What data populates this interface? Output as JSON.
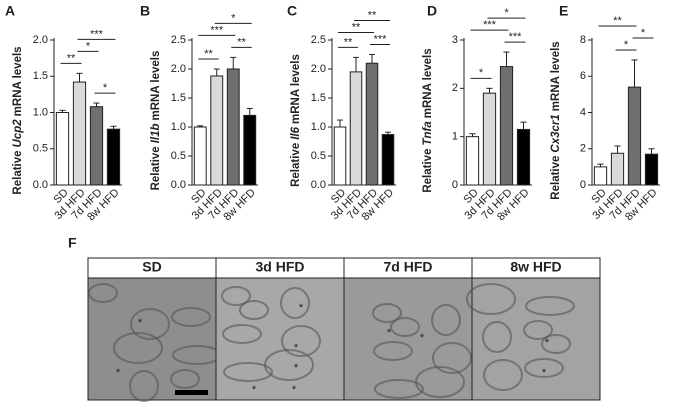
{
  "chart_data": [
    {
      "type": "bar",
      "panel": "A",
      "ylabel": {
        "prefix": "Relative",
        "gene": "Ucp2",
        "suffix": "mRNA levels"
      },
      "categories": [
        "SD",
        "3d HFD",
        "7d HFD",
        "8w HFD"
      ],
      "values": [
        1.0,
        1.42,
        1.08,
        0.77
      ],
      "errors": [
        0.03,
        0.12,
        0.05,
        0.04
      ],
      "colors": [
        "#ffffff",
        "#d9d9d9",
        "#707070",
        "#000000"
      ],
      "ylim": [
        0,
        2
      ],
      "yticks": [
        {
          "value": 0,
          "label": "0.0"
        },
        0.5,
        {
          "value": 1,
          "label": "1.0"
        },
        1.5,
        {
          "value": 2,
          "label": "2.0"
        }
      ],
      "comparisons": [
        {
          "pair": [
            0,
            1
          ],
          "label": "**"
        },
        {
          "pair": [
            1,
            2
          ],
          "label": "*"
        },
        {
          "pair": [
            2,
            3
          ],
          "label": "*"
        },
        {
          "pair": [
            1,
            3
          ],
          "label": "***"
        }
      ]
    },
    {
      "type": "bar",
      "panel": "B",
      "ylabel": {
        "prefix": "Relative",
        "gene": "Il1b",
        "suffix": "mRNA levels"
      },
      "categories": [
        "SD",
        "3d HFD",
        "7d HFD",
        "8w HFD"
      ],
      "values": [
        1.0,
        1.88,
        2.0,
        1.2
      ],
      "errors": [
        0.02,
        0.12,
        0.2,
        0.12
      ],
      "colors": [
        "#ffffff",
        "#d9d9d9",
        "#707070",
        "#000000"
      ],
      "ylim": [
        0,
        2.5
      ],
      "yticks": [
        {
          "value": 0,
          "label": "0.0"
        },
        0.5,
        {
          "value": 1,
          "label": "1.0"
        },
        1.5,
        {
          "value": 2,
          "label": "2.0"
        },
        2.5
      ],
      "comparisons": [
        {
          "pair": [
            0,
            1
          ],
          "label": "**"
        },
        {
          "pair": [
            2,
            3
          ],
          "label": "**"
        },
        {
          "pair": [
            0,
            2
          ],
          "label": "***"
        },
        {
          "pair": [
            1,
            3
          ],
          "label": "*"
        }
      ]
    },
    {
      "type": "bar",
      "panel": "C",
      "ylabel": {
        "prefix": "Relative",
        "gene": "Il6",
        "suffix": "mRNA levels"
      },
      "categories": [
        "SD",
        "3d HFD",
        "7d HFD",
        "8w HFD"
      ],
      "values": [
        1.0,
        1.95,
        2.1,
        0.87
      ],
      "errors": [
        0.12,
        0.25,
        0.15,
        0.04
      ],
      "colors": [
        "#ffffff",
        "#d9d9d9",
        "#707070",
        "#000000"
      ],
      "ylim": [
        0,
        2.5
      ],
      "yticks": [
        {
          "value": 0,
          "label": "0.0"
        },
        0.5,
        {
          "value": 1,
          "label": "1.0"
        },
        1.5,
        {
          "value": 2,
          "label": "2.0"
        },
        2.5
      ],
      "comparisons": [
        {
          "pair": [
            0,
            1
          ],
          "label": "**"
        },
        {
          "pair": [
            2,
            3
          ],
          "label": "***"
        },
        {
          "pair": [
            0,
            2
          ],
          "label": "**"
        },
        {
          "pair": [
            1,
            3
          ],
          "label": "**"
        }
      ]
    },
    {
      "type": "bar",
      "panel": "D",
      "ylabel": {
        "prefix": "Relative",
        "gene": "Tnfa",
        "suffix": "mRNA levels"
      },
      "categories": [
        "SD",
        "3d HFD",
        "7d HFD",
        "8w HFD"
      ],
      "values": [
        1.0,
        1.9,
        2.45,
        1.15
      ],
      "errors": [
        0.06,
        0.1,
        0.3,
        0.15
      ],
      "colors": [
        "#ffffff",
        "#d9d9d9",
        "#707070",
        "#000000"
      ],
      "ylim": [
        0,
        3
      ],
      "yticks": [
        0,
        1,
        2,
        3
      ],
      "comparisons": [
        {
          "pair": [
            0,
            1
          ],
          "label": "*"
        },
        {
          "pair": [
            2,
            3
          ],
          "label": "***"
        },
        {
          "pair": [
            0,
            2
          ],
          "label": "***"
        },
        {
          "pair": [
            1,
            3
          ],
          "label": "*"
        }
      ]
    },
    {
      "type": "bar",
      "panel": "E",
      "ylabel": {
        "prefix": "Relative",
        "gene": "Cx3cr1",
        "suffix": "mRNA levels"
      },
      "categories": [
        "SD",
        "3d HFD",
        "7d HFD",
        "8w HFD"
      ],
      "values": [
        1.0,
        1.75,
        5.4,
        1.7
      ],
      "errors": [
        0.15,
        0.4,
        1.5,
        0.3
      ],
      "colors": [
        "#ffffff",
        "#d9d9d9",
        "#707070",
        "#000000"
      ],
      "ylim": [
        0,
        8
      ],
      "yticks": [
        0,
        2,
        4,
        6,
        8
      ],
      "comparisons": [
        {
          "pair": [
            1,
            2
          ],
          "label": "*"
        },
        {
          "pair": [
            2,
            3
          ],
          "label": "*"
        },
        {
          "pair": [
            0,
            2
          ],
          "label": "**"
        }
      ]
    }
  ],
  "figure_f": {
    "panel": "F",
    "headers": [
      "SD",
      "3d HFD",
      "7d HFD",
      "8w HFD"
    ],
    "marker": "*"
  }
}
